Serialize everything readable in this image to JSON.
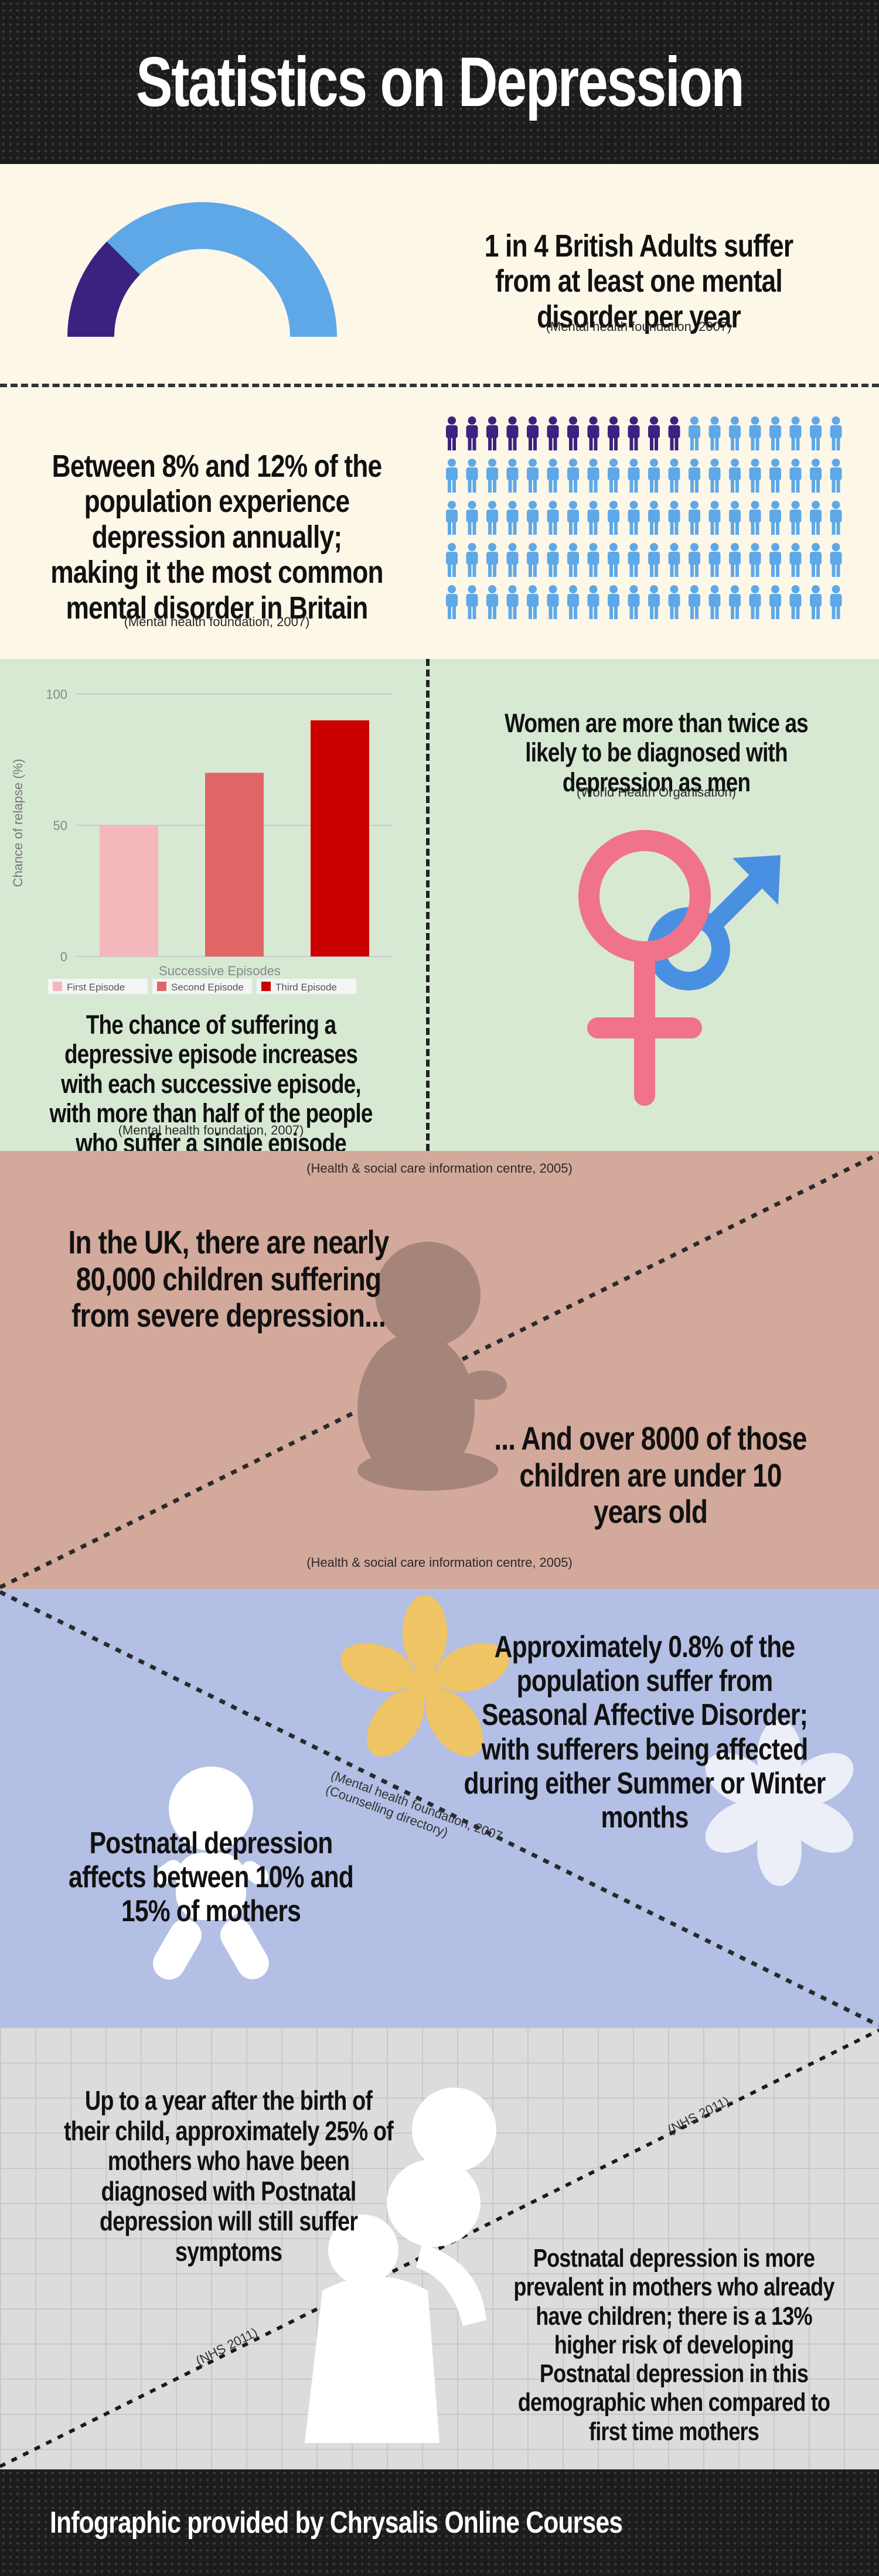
{
  "header": {
    "title": "Statistics on Depression"
  },
  "s1": {
    "stat": "1 in 4 British Adults suffer from at least one mental disorder per year",
    "cite": "(Mental health foundation, 2007)",
    "gauge_fraction": 0.25,
    "colors": {
      "dark": "#3a2380",
      "light": "#5fa8e8"
    }
  },
  "s2": {
    "stat": "Between 8% and 12% of the population experience depression annually; making it the most common mental disorder in Britain",
    "cite": "(Mental health foundation, 2007)",
    "people_total": 100,
    "people_highlighted": 12,
    "colors": {
      "dark": "#3a2380",
      "light": "#5fa8e8"
    }
  },
  "s3": {
    "chart_data": {
      "type": "bar",
      "categories": [
        "First Episode",
        "Second Episode",
        "Third Episode"
      ],
      "values": [
        50,
        70,
        90
      ],
      "colors": [
        "#f4b7bb",
        "#e06666",
        "#cc0000"
      ],
      "xlabel": "Successive Episodes",
      "ylabel": "Chance of relapse (%)",
      "ylim": [
        0,
        100
      ],
      "yticks": [
        "0",
        "50",
        "100"
      ],
      "grid": true,
      "legend": "bottom"
    },
    "left_text": "The chance of suffering a depressive episode increases with each successive episode, with more than half of the people who suffer a single episode suffering a second.",
    "left_cite": "(Mental health foundation, 2007)",
    "right_text": "Women are more than twice as likely to be diagnosed with depression as men",
    "right_cite": "(World Health Organisation)",
    "colors": {
      "female": "#f0738b",
      "male": "#4a90e2"
    }
  },
  "s4": {
    "top_cite": "(Health & social care information centre, 2005)",
    "stat1": "In the UK, there are nearly 80,000 children suffering from severe depression...",
    "stat2": "... And over 8000 of those children are under 10 years old",
    "bottom_cite": "(Health & social care information centre, 2005)"
  },
  "s5": {
    "stat1": "Approximately 0.8% of the population suffer from Seasonal Affective Disorder; with sufferers being affected during either Summer or Winter months",
    "cite1": "(Mental health foundation, 2007",
    "cite2": "(Counselling directory)",
    "stat2": "Postnatal depression affects between 10% and 15% of mothers"
  },
  "s6": {
    "stat1": "Up to a year after the birth of their child, approximately 25% of mothers who have been diagnosed with Postnatal depression will still suffer symptoms",
    "cite1": "(NHS 2011)",
    "cite2": "(NHS 2011)",
    "stat2": "Postnatal depression is more prevalent in mothers who already have children; there is a 13% higher risk of developing Postnatal depression in this demographic when compared to first time mothers"
  },
  "footer": {
    "text": "Infographic provided by Chrysalis Online Courses"
  }
}
